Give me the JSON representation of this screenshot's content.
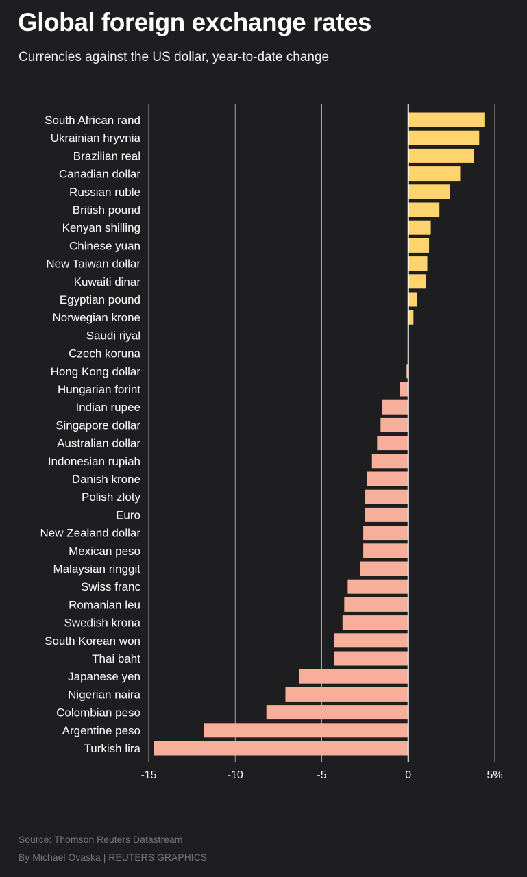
{
  "title": "Global foreign exchange rates",
  "subtitle": "Currencies against the US dollar, year-to-date change",
  "footer": {
    "source": "Source: Thomson Reuters Datastream",
    "byline": "By Michael Ovaska | REUTERS GRAPHICS"
  },
  "colors": {
    "background": "#1e1d1f",
    "positive_bar": "#ffd36e",
    "negative_bar": "#f7ae9b",
    "gridline": "#a7a7a7",
    "zero_line": "#ffffff"
  },
  "chart_data": {
    "type": "bar",
    "orientation": "horizontal",
    "title": "Global foreign exchange rates",
    "subtitle": "Currencies against the US dollar, year-to-date change",
    "xlim": [
      -15,
      5
    ],
    "ticks": [
      {
        "value": -15,
        "label": "-15"
      },
      {
        "value": -10,
        "label": "-10"
      },
      {
        "value": -5,
        "label": "-5"
      },
      {
        "value": 0,
        "label": "0"
      },
      {
        "value": 5,
        "label": "5%"
      }
    ],
    "grid": true,
    "categories": [
      "South African rand",
      "Ukrainian hryvnia",
      "Brazilian real",
      "Canadian dollar",
      "Russian ruble",
      "British pound",
      "Kenyan shilling",
      "Chinese yuan",
      "New Taiwan dollar",
      "Kuwaiti dinar",
      "Egyptian pound",
      "Norwegian krone",
      "Saudi riyal",
      "Czech koruna",
      "Hong Kong dollar",
      "Hungarian forint",
      "Indian rupee",
      "Singapore dollar",
      "Australian dollar",
      "Indonesian rupiah",
      "Danish krone",
      "Polish zloty",
      "Euro",
      "New Zealand dollar",
      "Mexican peso",
      "Malaysian ringgit",
      "Swiss franc",
      "Romanian leu",
      "Swedish krona",
      "South Korean won",
      "Thai baht",
      "Japanese yen",
      "Nigerian naira",
      "Colombian peso",
      "Argentine peso",
      "Turkish lira"
    ],
    "values": [
      4.4,
      4.1,
      3.8,
      3.0,
      2.4,
      1.8,
      1.3,
      1.2,
      1.1,
      1.0,
      0.5,
      0.3,
      0.0,
      0.0,
      -0.1,
      -0.5,
      -1.5,
      -1.6,
      -1.8,
      -2.1,
      -2.4,
      -2.5,
      -2.5,
      -2.6,
      -2.6,
      -2.8,
      -3.5,
      -3.7,
      -3.8,
      -4.3,
      -4.3,
      -6.3,
      -7.1,
      -8.2,
      -11.8,
      -14.7
    ]
  }
}
